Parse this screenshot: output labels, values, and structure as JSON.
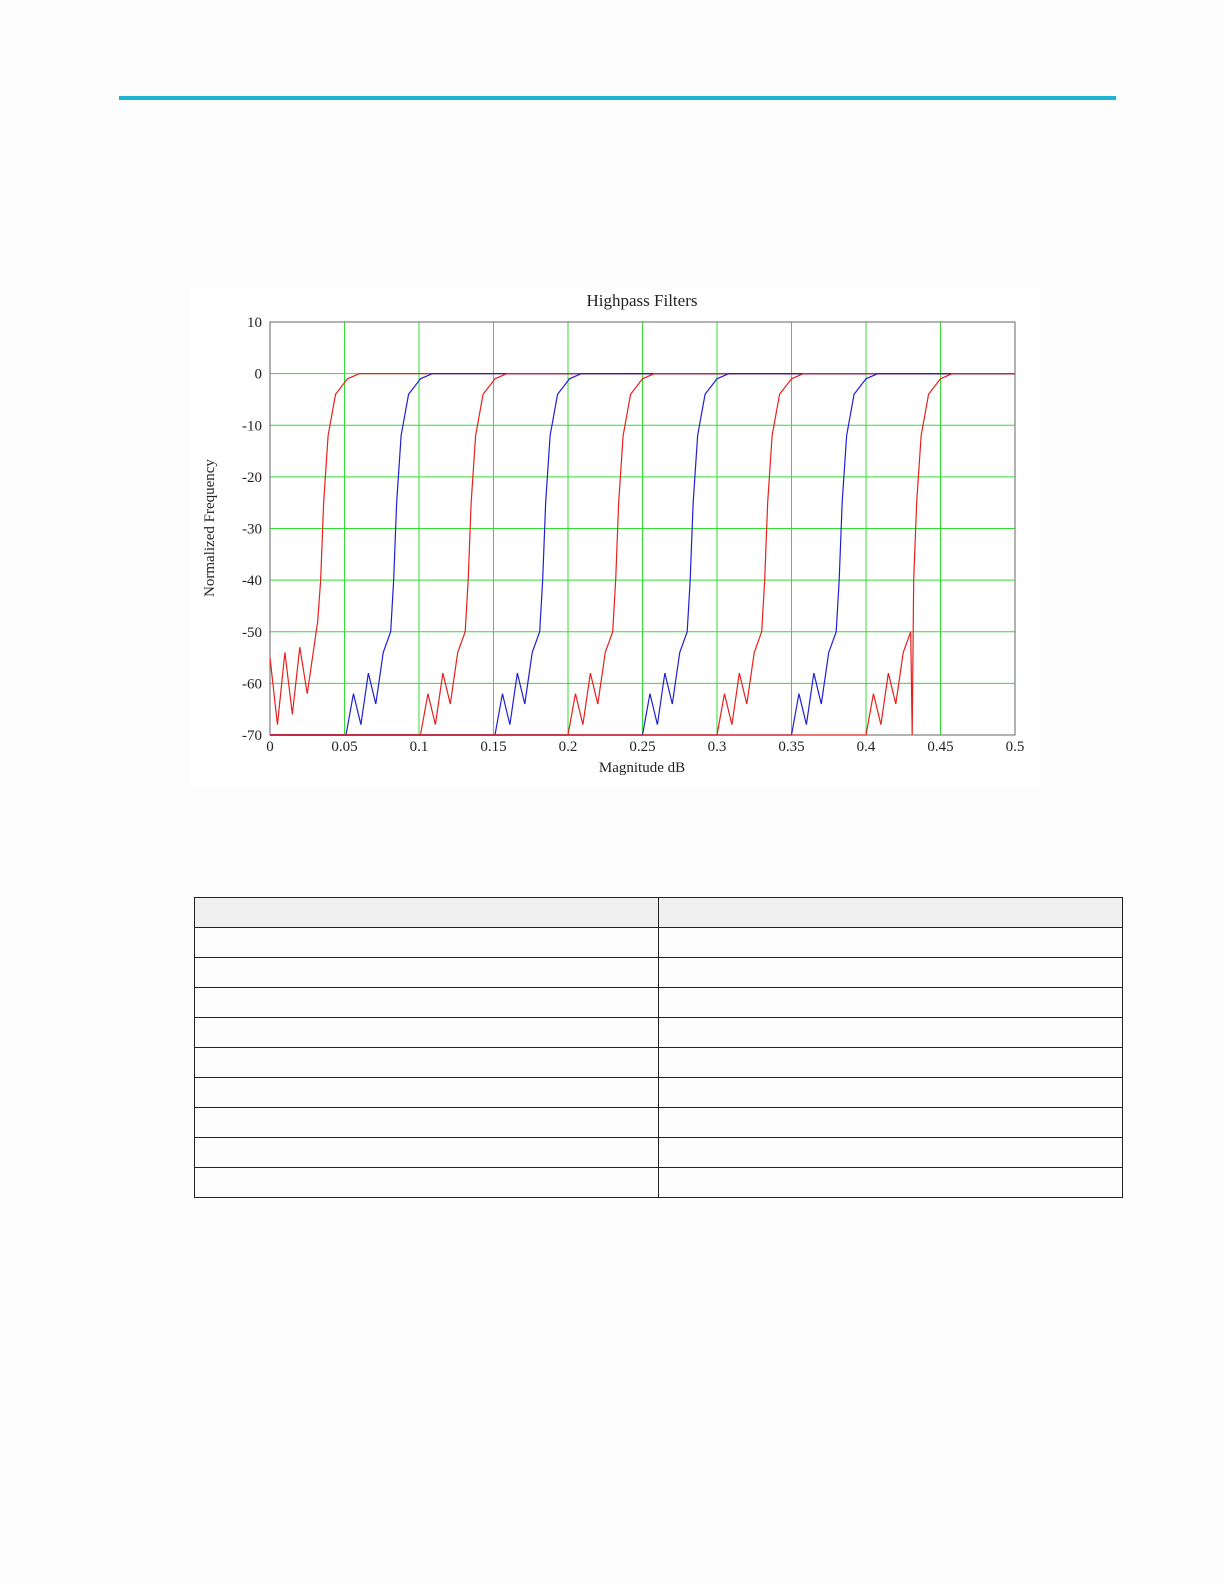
{
  "chart_data": {
    "type": "line",
    "title": "Highpass Filters",
    "x_label": "Magnitude dB",
    "y_label": "Normalized Frequency",
    "xlim": [
      0,
      0.5
    ],
    "xticks": [
      0,
      0.05,
      0.1,
      0.15,
      0.2,
      0.25,
      0.3,
      0.35,
      0.4,
      0.45,
      0.5
    ],
    "ylim": [
      -70,
      10
    ],
    "yticks": [
      10,
      0,
      -10,
      -20,
      -30,
      -40,
      -50,
      -60,
      -70
    ],
    "grid": true,
    "grid_color": "#33dd33",
    "series": [
      {
        "color": "#e8201c",
        "x": [
          0,
          0.005,
          0.01,
          0.015,
          0.02,
          0.025,
          0.03,
          0.032,
          0.034,
          0.036,
          0.039,
          0.044,
          0.052,
          0.06,
          0.5
        ],
        "values": [
          -55,
          -68,
          -54,
          -66,
          -53,
          -62,
          -52,
          -48,
          -40,
          -25,
          -12,
          -4,
          -1,
          0,
          0
        ]
      },
      {
        "color": "#2020d0",
        "x": [
          0,
          0.051,
          0.056,
          0.061,
          0.066,
          0.071,
          0.076,
          0.081,
          0.083,
          0.085,
          0.088,
          0.093,
          0.101,
          0.109,
          0.5
        ],
        "values": [
          -70,
          -70,
          -62,
          -68,
          -58,
          -64,
          -54,
          -50,
          -40,
          -25,
          -12,
          -4,
          -1,
          0,
          0
        ]
      },
      {
        "color": "#e8201c",
        "x": [
          0,
          0.101,
          0.106,
          0.111,
          0.116,
          0.121,
          0.126,
          0.131,
          0.133,
          0.135,
          0.138,
          0.143,
          0.151,
          0.159,
          0.5
        ],
        "values": [
          -70,
          -70,
          -62,
          -68,
          -58,
          -64,
          -54,
          -50,
          -40,
          -25,
          -12,
          -4,
          -1,
          0,
          0
        ]
      },
      {
        "color": "#2020d0",
        "x": [
          0,
          0.151,
          0.156,
          0.161,
          0.166,
          0.171,
          0.176,
          0.181,
          0.183,
          0.185,
          0.188,
          0.193,
          0.201,
          0.209,
          0.5
        ],
        "values": [
          -70,
          -70,
          -62,
          -68,
          -58,
          -64,
          -54,
          -50,
          -40,
          -25,
          -12,
          -4,
          -1,
          0,
          0
        ]
      },
      {
        "color": "#e8201c",
        "x": [
          0,
          0.2,
          0.205,
          0.21,
          0.215,
          0.22,
          0.225,
          0.23,
          0.232,
          0.234,
          0.237,
          0.242,
          0.25,
          0.258,
          0.5
        ],
        "values": [
          -70,
          -70,
          -62,
          -68,
          -58,
          -64,
          -54,
          -50,
          -40,
          -25,
          -12,
          -4,
          -1,
          0,
          0
        ]
      },
      {
        "color": "#2020d0",
        "x": [
          0,
          0.25,
          0.255,
          0.26,
          0.265,
          0.27,
          0.275,
          0.28,
          0.282,
          0.284,
          0.287,
          0.292,
          0.3,
          0.308,
          0.5
        ],
        "values": [
          -70,
          -70,
          -62,
          -68,
          -58,
          -64,
          -54,
          -50,
          -40,
          -25,
          -12,
          -4,
          -1,
          0,
          0
        ]
      },
      {
        "color": "#e8201c",
        "x": [
          0,
          0.3,
          0.305,
          0.31,
          0.315,
          0.32,
          0.325,
          0.33,
          0.332,
          0.334,
          0.337,
          0.342,
          0.35,
          0.358,
          0.5
        ],
        "values": [
          -70,
          -70,
          -62,
          -68,
          -58,
          -64,
          -54,
          -50,
          -40,
          -25,
          -12,
          -4,
          -1,
          0,
          0
        ]
      },
      {
        "color": "#2020d0",
        "x": [
          0,
          0.35,
          0.355,
          0.36,
          0.365,
          0.37,
          0.375,
          0.38,
          0.382,
          0.384,
          0.387,
          0.392,
          0.4,
          0.408,
          0.5
        ],
        "values": [
          -70,
          -70,
          -62,
          -68,
          -58,
          -64,
          -54,
          -50,
          -40,
          -25,
          -12,
          -4,
          -1,
          0,
          0
        ]
      },
      {
        "color": "#e8201c",
        "x": [
          0,
          0.4,
          0.405,
          0.41,
          0.415,
          0.42,
          0.425,
          0.43,
          0.431,
          0.432,
          0.434,
          0.437,
          0.442,
          0.45,
          0.458,
          0.5
        ],
        "values": [
          -70,
          -70,
          -62,
          -68,
          -58,
          -64,
          -54,
          -50,
          -70,
          -40,
          -25,
          -12,
          -4,
          -1,
          0,
          0
        ]
      }
    ]
  }
}
